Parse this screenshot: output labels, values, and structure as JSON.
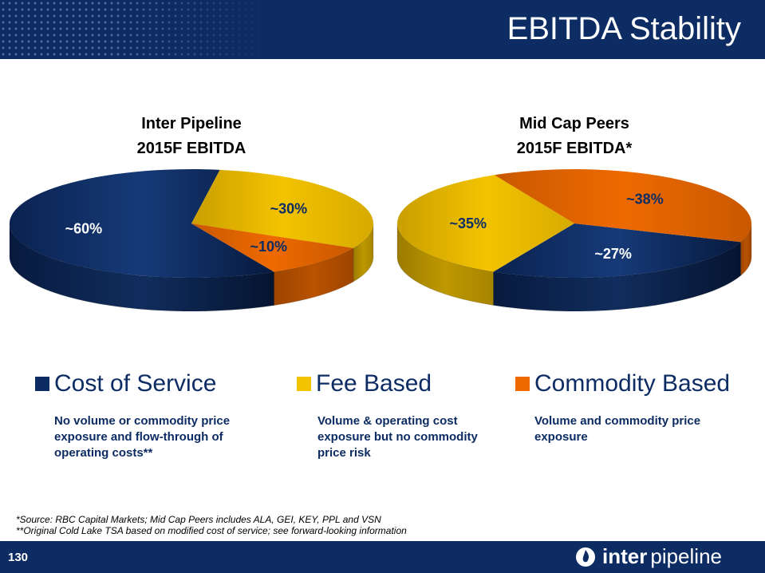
{
  "header": {
    "title": "EBITDA Stability"
  },
  "colors": {
    "navy": "#0d2c63",
    "yellow": "#f3c300",
    "orange": "#ee6a00"
  },
  "chart_data": [
    {
      "type": "pie",
      "title_line1": "Inter Pipeline",
      "title_line2": "2015F EBITDA",
      "slices": [
        {
          "name": "Cost of Service",
          "value": 60,
          "label": "~60%"
        },
        {
          "name": "Fee Based",
          "value": 30,
          "label": "~30%"
        },
        {
          "name": "Commodity Based",
          "value": 10,
          "label": "~10%"
        }
      ]
    },
    {
      "type": "pie",
      "title_line1": "Mid Cap Peers",
      "title_line2": "2015F EBITDA*",
      "slices": [
        {
          "name": "Cost of Service",
          "value": 27,
          "label": "~27%"
        },
        {
          "name": "Fee Based",
          "value": 35,
          "label": "~35%"
        },
        {
          "name": "Commodity Based",
          "value": 38,
          "label": "~38%"
        }
      ]
    }
  ],
  "legend": [
    {
      "label": "Cost of Service",
      "description_lines": [
        "No volume or commodity price",
        "exposure and flow-through of",
        "operating costs**"
      ]
    },
    {
      "label": "Fee Based",
      "description_lines": [
        "Volume & operating cost",
        "exposure but no commodity",
        "price risk"
      ]
    },
    {
      "label": "Commodity Based",
      "description_lines": [
        "Volume and commodity price",
        "exposure"
      ]
    }
  ],
  "footnotes": [
    "*Source: RBC Capital Markets; Mid Cap Peers includes ALA, GEI, KEY, PPL and VSN",
    "**Original Cold Lake TSA based on modified cost of service; see forward-looking information"
  ],
  "footer": {
    "page_number": "130",
    "brand_bold": "inter",
    "brand_regular": "pipeline"
  }
}
